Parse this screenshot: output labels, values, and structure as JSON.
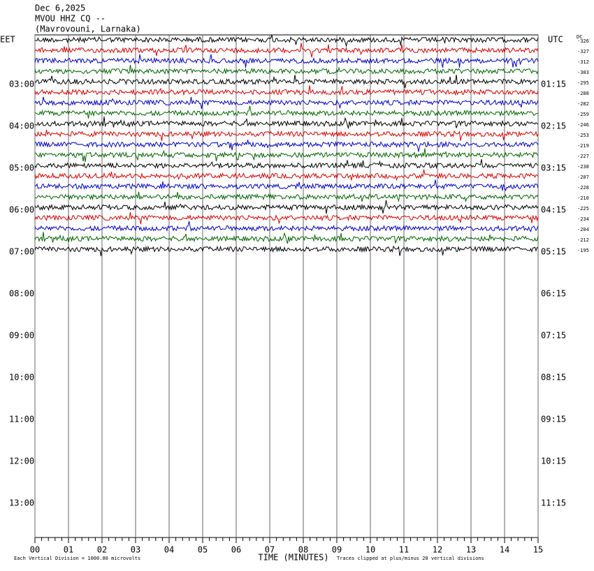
{
  "chart_data": {
    "type": "helicorder",
    "title_lines": [
      "Dec 6,2025",
      "MVOU HHZ CQ --",
      "(Mavrovouni, Larnaka)"
    ],
    "left_zone": "EET",
    "right_zone": "UTC",
    "dc_label": "DC",
    "left_hours": [
      "03:00",
      "04:00",
      "05:00",
      "06:00",
      "07:00",
      "08:00",
      "09:00",
      "10:00",
      "11:00",
      "12:00",
      "13:00"
    ],
    "right_hours": [
      "01:15",
      "02:15",
      "03:15",
      "04:15",
      "05:15",
      "06:15",
      "07:15",
      "08:15",
      "09:15",
      "10:15",
      "11:15"
    ],
    "dc_offsets": [
      -326,
      -327,
      -312,
      -303,
      -295,
      -288,
      -282,
      -259,
      -246,
      -253,
      -219,
      -227,
      -238,
      -207,
      -228,
      -210,
      -225,
      -234,
      -204,
      -212,
      -195
    ],
    "trace_colors": [
      "#000000",
      "#dd0000",
      "#0000cc",
      "#006600"
    ],
    "xlim": [
      0,
      15
    ],
    "xticks": [
      {
        "value": 0,
        "label": "00"
      },
      {
        "value": 1,
        "label": "01"
      },
      {
        "value": 2,
        "label": "02"
      },
      {
        "value": 3,
        "label": "03"
      },
      {
        "value": 4,
        "label": "04"
      },
      {
        "value": 5,
        "label": "05"
      },
      {
        "value": 6,
        "label": "06"
      },
      {
        "value": 7,
        "label": "07"
      },
      {
        "value": 8,
        "label": "08"
      },
      {
        "value": 9,
        "label": "09"
      },
      {
        "value": 10,
        "label": "10"
      },
      {
        "value": 11,
        "label": "11"
      },
      {
        "value": 12,
        "label": "12"
      },
      {
        "value": 13,
        "label": "13"
      },
      {
        "value": 14,
        "label": "14"
      },
      {
        "value": 15,
        "label": "15"
      }
    ],
    "xlabel": "TIME (MINUTES)",
    "scale_note": "Each Vertical Division = 1000.00 microvolts",
    "clip_note": "Traces clipped at plus/minus 20 vertical divisions",
    "grid": true
  }
}
